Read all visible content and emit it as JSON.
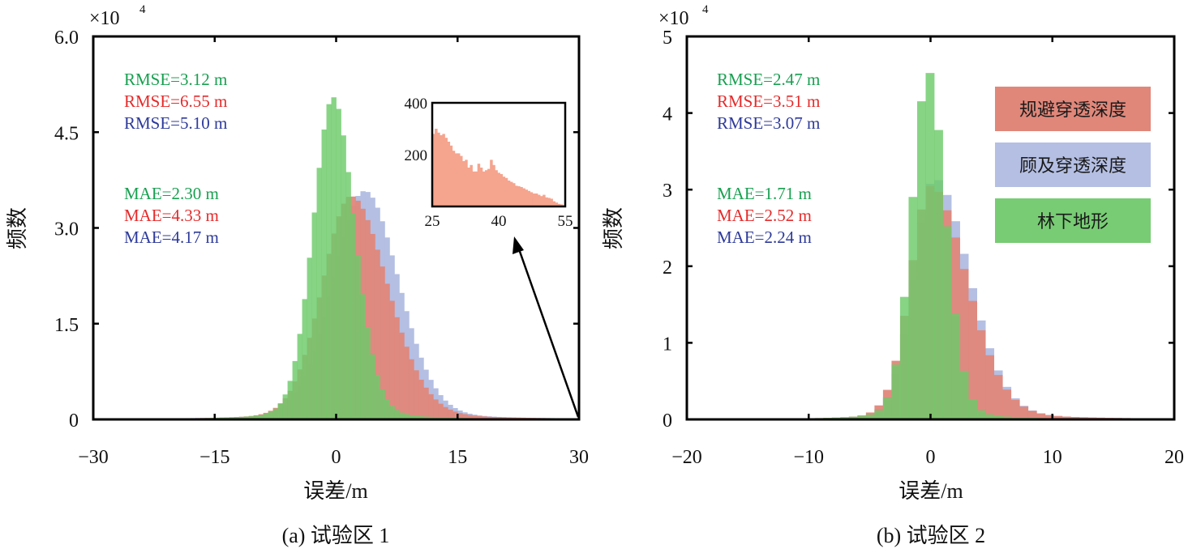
{
  "colors": {
    "avoid": "#e0877a",
    "consider": "#b4bfe3",
    "terrain": "#6ccb6a",
    "overlap": "#6aad57",
    "stat_green": "#18a050",
    "stat_red": "#e52a2a",
    "stat_blue": "#2d3a9a"
  },
  "legend": [
    {
      "label": "规避穿透深度",
      "color": "#e0877a"
    },
    {
      "label": "顾及穿透深度",
      "color": "#b4bfe3"
    },
    {
      "label": "林下地形",
      "color": "#78cc74"
    }
  ],
  "chart_data": [
    {
      "type": "bar",
      "title": "(a) 试验区 1",
      "xlabel": "误差/m",
      "ylabel": "频数",
      "y_multiplier": "×10",
      "y_multiplier_exp": "4",
      "xlim": [
        -30,
        30
      ],
      "ylim": [
        0,
        6.0
      ],
      "xticks": [
        "−30",
        "−15",
        "0",
        "15",
        "30"
      ],
      "xtick_values": [
        -30,
        -15,
        0,
        15,
        30
      ],
      "yticks": [
        "0",
        "1.5",
        "3.0",
        "4.5",
        "6.0"
      ],
      "ytick_values": [
        0,
        1.5,
        3.0,
        4.5,
        6.0
      ],
      "bin_width": 0.6,
      "stats": [
        {
          "text": "RMSE=3.12 m",
          "color": "#18a050"
        },
        {
          "text": "RMSE=6.55 m",
          "color": "#e52a2a"
        },
        {
          "text": "RMSE=5.10 m",
          "color": "#2d3a9a"
        },
        {
          "text": "MAE=2.30 m",
          "color": "#18a050"
        },
        {
          "text": "MAE=4.33 m",
          "color": "#e52a2a"
        },
        {
          "text": "MAE=4.17 m",
          "color": "#2d3a9a"
        }
      ],
      "series": [
        {
          "name": "顾及穿透深度",
          "peak": 3.58,
          "mode": 3.5,
          "sd_left": 4.0,
          "sd_right": 4.3
        },
        {
          "name": "规避穿透深度",
          "peak": 3.5,
          "mode": 1.8,
          "sd_left": 3.6,
          "sd_right": 4.6
        },
        {
          "name": "林下地形",
          "peak": 5.05,
          "mode": -0.4,
          "sd_left": 2.5,
          "sd_right": 2.7
        }
      ],
      "inset": {
        "xlim": [
          25,
          55
        ],
        "ylim": [
          0,
          400
        ],
        "xticks": [
          "25",
          "40",
          "55"
        ],
        "xtick_values": [
          25,
          40,
          55
        ],
        "yticks": [
          "200",
          "400"
        ],
        "ytick_values": [
          200,
          400
        ],
        "values": [
          280,
          300,
          285,
          275,
          280,
          265,
          250,
          235,
          215,
          205,
          205,
          195,
          175,
          180,
          150,
          160,
          135,
          135,
          165,
          150,
          135,
          140,
          145,
          180,
          160,
          140,
          130,
          125,
          115,
          110,
          100,
          95,
          90,
          80,
          78,
          75,
          70,
          65,
          60,
          55,
          50,
          50,
          45,
          40,
          45,
          35,
          33,
          30,
          20,
          15,
          10,
          8,
          5
        ]
      }
    },
    {
      "type": "bar",
      "title": "(b) 试验区 2",
      "xlabel": "误差/m",
      "ylabel": "频数",
      "y_multiplier": "×10",
      "y_multiplier_exp": "4",
      "xlim": [
        -20,
        20
      ],
      "ylim": [
        0,
        5
      ],
      "xticks": [
        "−20",
        "−10",
        "0",
        "10",
        "20"
      ],
      "xtick_values": [
        -20,
        -10,
        0,
        10,
        20
      ],
      "yticks": [
        "0",
        "1",
        "2",
        "3",
        "4",
        "5"
      ],
      "ytick_values": [
        0,
        1,
        2,
        3,
        4,
        5
      ],
      "bin_width": 0.7,
      "stats": [
        {
          "text": "RMSE=2.47 m",
          "color": "#18a050"
        },
        {
          "text": "RMSE=3.51 m",
          "color": "#e52a2a"
        },
        {
          "text": "RMSE=3.07 m",
          "color": "#2d3a9a"
        },
        {
          "text": "MAE=1.71 m",
          "color": "#18a050"
        },
        {
          "text": "MAE=2.52 m",
          "color": "#e52a2a"
        },
        {
          "text": "MAE=2.24 m",
          "color": "#2d3a9a"
        }
      ],
      "series": [
        {
          "name": "顾及穿透深度",
          "peak": 3.15,
          "mode": 0.3,
          "sd_left": 1.7,
          "sd_right": 2.9
        },
        {
          "name": "规避穿透深度",
          "peak": 3.05,
          "mode": 0.0,
          "sd_left": 1.7,
          "sd_right": 3.0
        },
        {
          "name": "林下地形",
          "peak": 4.55,
          "mode": -0.2,
          "sd_left": 1.35,
          "sd_right": 1.45
        }
      ]
    }
  ]
}
